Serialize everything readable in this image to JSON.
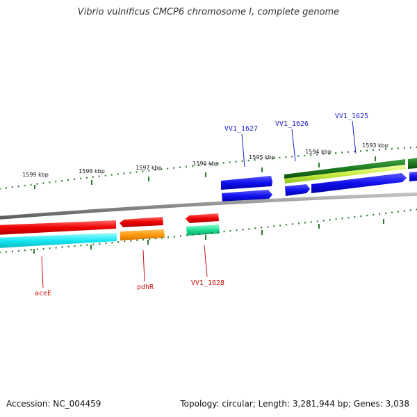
{
  "header": {
    "title": "Vibrio vulnificus CMCP6 chromosome I, complete genome"
  },
  "footer": {
    "accession": "Accession: NC_004459",
    "topology": "Topology: circular; Length: 3,281,944 bp; Genes: 3,038"
  },
  "colors": {
    "forward_label": "#1a1acc",
    "reverse_label": "#cc1111",
    "backbone": "#808080",
    "tick": "#2a7a2a"
  },
  "ruler": {
    "ticks": [
      "1599 kbp",
      "1598 kbp",
      "1597 kbp",
      "1596 kbp",
      "1595 kbp",
      "1594 kbp",
      "1593 kbp"
    ]
  },
  "genes": {
    "forward": [
      {
        "label": "VV1_1627"
      },
      {
        "label": "VV1_1626"
      },
      {
        "label": "VV1_1625"
      }
    ],
    "reverse": [
      {
        "label": "aceE"
      },
      {
        "label": "pdhR"
      },
      {
        "label": "VV1_1628"
      }
    ]
  }
}
